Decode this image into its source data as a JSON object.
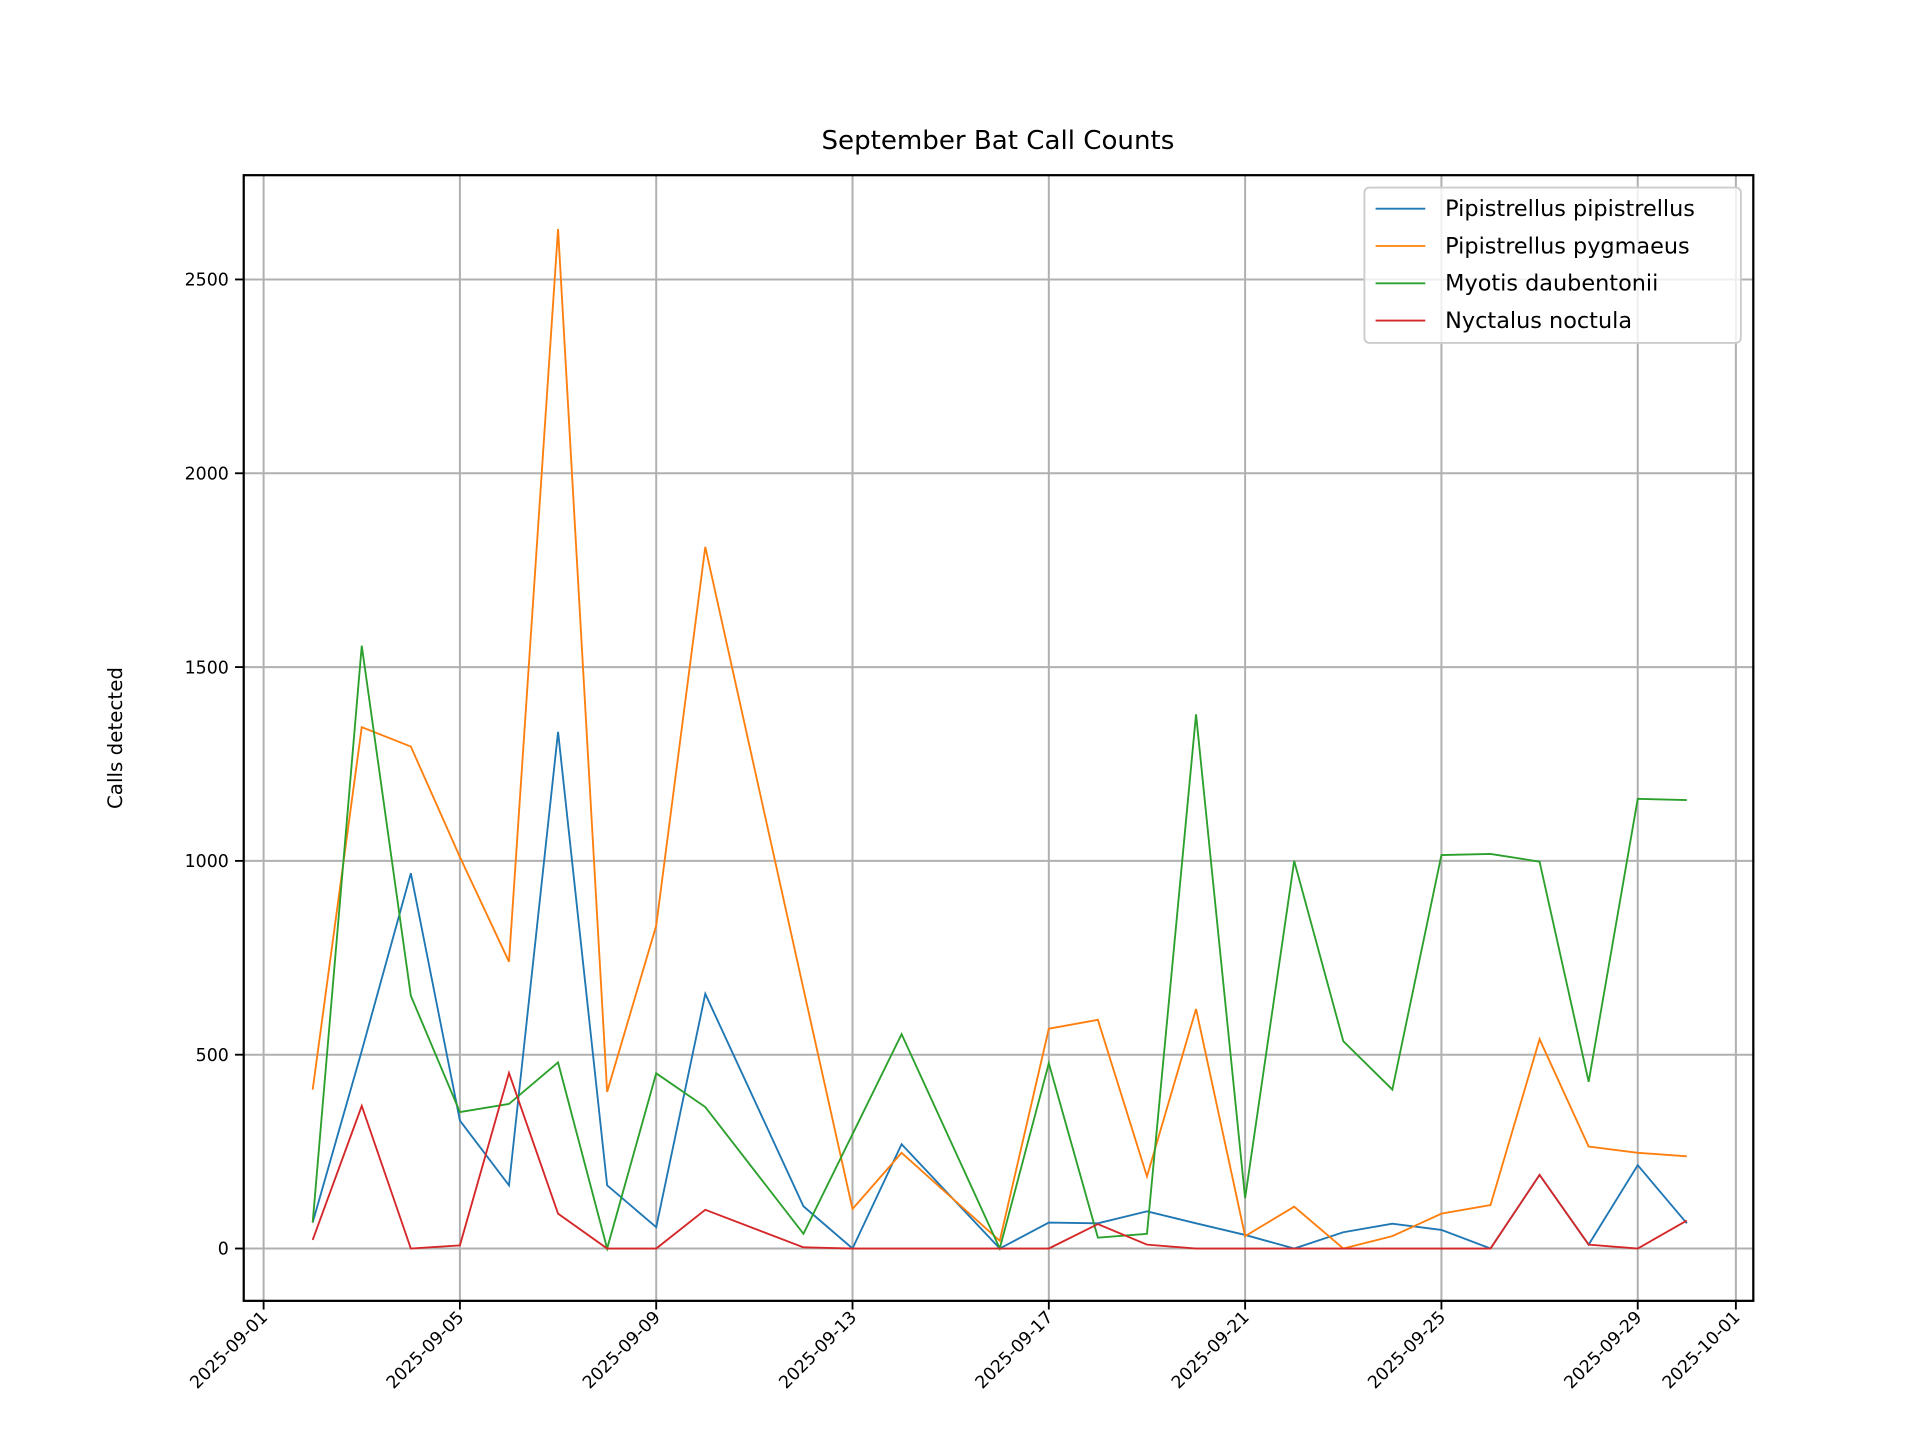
{
  "chart_data": {
    "type": "line",
    "title": "September Bat Call Counts",
    "xlabel": "",
    "ylabel": "Calls detected",
    "grid": true,
    "legend_position": "top-right",
    "xlim": [
      "2025-08-31.6",
      "2025-10-01.35"
    ],
    "ylim": [
      -135,
      2769
    ],
    "x_ticks": [
      "2025-09-01",
      "2025-09-05",
      "2025-09-09",
      "2025-09-13",
      "2025-09-17",
      "2025-09-21",
      "2025-09-25",
      "2025-09-29",
      "2025-10-01"
    ],
    "y_ticks": [
      0,
      500,
      1000,
      1500,
      2000,
      2500
    ],
    "x": [
      "2025-09-02",
      "2025-09-03",
      "2025-09-04",
      "2025-09-05",
      "2025-09-06",
      "2025-09-07",
      "2025-09-08",
      "2025-09-09",
      "2025-09-10",
      "2025-09-12",
      "2025-09-13",
      "2025-09-14",
      "2025-09-16",
      "2025-09-17",
      "2025-09-18",
      "2025-09-19",
      "2025-09-20",
      "2025-09-21",
      "2025-09-22",
      "2025-09-23",
      "2025-09-24",
      "2025-09-25",
      "2025-09-26",
      "2025-09-27",
      "2025-09-28",
      "2025-09-29",
      "2025-09-30"
    ],
    "series": [
      {
        "name": "Pipistrellus pipistrellus",
        "color": "#1f77b4",
        "values": [
          67,
          510,
          968,
          330,
          163,
          1333,
          163,
          55,
          657,
          109,
          0,
          269,
          0,
          67,
          65,
          96,
          65,
          35,
          0,
          42,
          64,
          48,
          0,
          190,
          10,
          215,
          65
        ]
      },
      {
        "name": "Pipistrellus pygmaeus",
        "color": "#ff7f0e",
        "values": [
          410,
          1345,
          1295,
          1010,
          740,
          2630,
          404,
          833,
          1810,
          670,
          102,
          247,
          20,
          567,
          590,
          186,
          618,
          32,
          108,
          0,
          32,
          90,
          112,
          540,
          263,
          247,
          238
        ]
      },
      {
        "name": "Myotis daubentonii",
        "color": "#2ca02c",
        "values": [
          67,
          1555,
          652,
          352,
          373,
          480,
          0,
          452,
          365,
          38,
          295,
          553,
          0,
          478,
          28,
          38,
          1378,
          130,
          1000,
          535,
          410,
          1015,
          1018,
          998,
          430,
          1160,
          1157
        ]
      },
      {
        "name": "Nyctalus noctula",
        "color": "#d62728",
        "values": [
          22,
          368,
          0,
          8,
          453,
          90,
          0,
          0,
          100,
          3,
          0,
          0,
          0,
          0,
          63,
          10,
          0,
          0,
          0,
          0,
          0,
          0,
          0,
          190,
          10,
          0,
          72
        ]
      }
    ]
  }
}
